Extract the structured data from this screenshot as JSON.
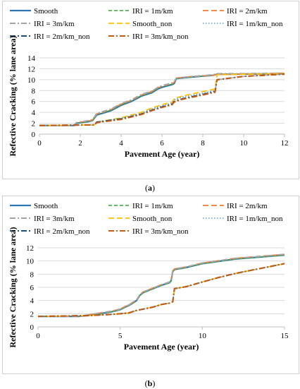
{
  "captions": {
    "a_open": "(",
    "a_letter": "a",
    "a_close": ")",
    "b_open": "(",
    "b_letter": "b",
    "b_close": ")"
  },
  "series_styles": [
    {
      "name": "Smooth",
      "color": "#2e75b6",
      "dash": "solid",
      "width": 2.2
    },
    {
      "name": "IRI = 1m/km",
      "color": "#3aa335",
      "dash": "dash",
      "width": 1.6
    },
    {
      "name": "IRI = 2m/km",
      "color": "#ed7d31",
      "dash": "longdash",
      "width": 1.8
    },
    {
      "name": "IRI = 3m/km",
      "color": "#a5a5a5",
      "dash": "dashdot",
      "width": 2.0
    },
    {
      "name": "Smooth_non",
      "color": "#ffc000",
      "dash": "longdash",
      "width": 1.8
    },
    {
      "name": "IRI = 1m/km_non",
      "color": "#5b9bd5",
      "dash": "dot",
      "width": 1.6
    },
    {
      "name": "IRI = 2m/km_non",
      "color": "#1f4e79",
      "dash": "dashdot",
      "width": 2.0
    },
    {
      "name": "IRI = 3m/km_non",
      "color": "#c55a11",
      "dash": "dashdot",
      "width": 2.0
    }
  ],
  "chart_data": [
    {
      "type": "line",
      "xlabel": "Pavement Age (year)",
      "ylabel": "Refective Cracking (% lane area)",
      "xlim": [
        0,
        12
      ],
      "ylim": [
        0,
        14
      ],
      "xticks": [
        "0",
        "2",
        "4",
        "6",
        "8",
        "10",
        "12"
      ],
      "yticks": [
        "0",
        "2",
        "4",
        "6",
        "8",
        "10",
        "12",
        "14"
      ],
      "grid": true,
      "legend_position": "top",
      "series": [
        {
          "name": "Smooth",
          "x": [
            0,
            1.7,
            1.8,
            2.4,
            2.6,
            2.7,
            2.8,
            3.5,
            4.0,
            4.5,
            5.0,
            5.5,
            5.8,
            6.0,
            6.5,
            6.6,
            6.7,
            7.5,
            8.5,
            8.7,
            9.5,
            12
          ],
          "y": [
            1.6,
            1.6,
            2.0,
            2.3,
            2.5,
            3.0,
            3.5,
            4.3,
            5.3,
            6.0,
            7.0,
            7.6,
            8.3,
            8.6,
            9.1,
            9.3,
            10.2,
            10.5,
            10.8,
            11.0,
            11.0,
            11.1
          ]
        },
        {
          "name": "IRI = 1m/km",
          "x": [
            0,
            1.7,
            1.8,
            2.4,
            2.6,
            2.7,
            2.8,
            3.5,
            4.0,
            4.5,
            5.0,
            5.5,
            5.8,
            6.0,
            6.5,
            6.6,
            6.7,
            7.5,
            8.5,
            8.7,
            9.5,
            12
          ],
          "y": [
            1.6,
            1.6,
            2.0,
            2.3,
            2.5,
            3.0,
            3.6,
            4.4,
            5.4,
            6.1,
            7.1,
            7.7,
            8.4,
            8.7,
            9.2,
            9.4,
            10.2,
            10.5,
            10.8,
            11.0,
            11.0,
            11.1
          ]
        },
        {
          "name": "IRI = 2m/km",
          "x": [
            0,
            1.7,
            1.8,
            2.4,
            2.6,
            2.7,
            2.8,
            3.5,
            4.0,
            4.5,
            5.0,
            5.5,
            5.8,
            6.0,
            6.5,
            6.6,
            6.7,
            7.5,
            8.5,
            8.7,
            9.5,
            12
          ],
          "y": [
            1.6,
            1.6,
            2.1,
            2.4,
            2.6,
            3.1,
            3.7,
            4.5,
            5.5,
            6.2,
            7.2,
            7.8,
            8.5,
            8.8,
            9.3,
            9.5,
            10.3,
            10.6,
            10.8,
            11.0,
            11.0,
            11.2
          ]
        },
        {
          "name": "IRI = 3m/km",
          "x": [
            0,
            1.7,
            1.8,
            2.4,
            2.6,
            2.7,
            2.8,
            3.5,
            4.0,
            4.5,
            5.0,
            5.5,
            5.8,
            6.0,
            6.5,
            6.6,
            6.7,
            7.5,
            8.5,
            8.7,
            9.5,
            12
          ],
          "y": [
            1.6,
            1.6,
            2.1,
            2.5,
            2.7,
            3.2,
            3.8,
            4.6,
            5.6,
            6.3,
            7.3,
            7.9,
            8.6,
            8.9,
            9.4,
            9.6,
            10.3,
            10.6,
            10.9,
            11.1,
            11.1,
            11.2
          ]
        },
        {
          "name": "Smooth_non",
          "x": [
            0,
            2.7,
            2.8,
            4.0,
            5.0,
            5.5,
            6.0,
            6.5,
            6.6,
            7.0,
            8.0,
            8.6,
            8.7,
            10.0,
            12
          ],
          "y": [
            1.6,
            1.7,
            2.2,
            3.0,
            4.0,
            4.8,
            5.4,
            5.9,
            6.5,
            7.0,
            7.8,
            8.3,
            10.9,
            11.0,
            11.1
          ]
        },
        {
          "name": "IRI = 1m/km_non",
          "x": [
            0,
            2.7,
            2.8,
            4.0,
            5.0,
            5.5,
            6.0,
            6.5,
            6.6,
            7.0,
            8.0,
            8.6,
            8.7,
            10.0,
            12
          ],
          "y": [
            1.6,
            1.7,
            2.2,
            2.9,
            3.8,
            4.6,
            5.2,
            5.7,
            6.3,
            6.8,
            7.5,
            8.0,
            10.0,
            10.6,
            11.0
          ]
        },
        {
          "name": "IRI = 2m/km_non",
          "x": [
            0,
            2.7,
            2.8,
            4.0,
            5.0,
            5.5,
            6.0,
            6.5,
            6.6,
            7.0,
            8.0,
            8.6,
            8.7,
            10.0,
            12
          ],
          "y": [
            1.6,
            1.7,
            2.2,
            2.8,
            3.7,
            4.4,
            5.0,
            5.5,
            6.0,
            6.5,
            7.3,
            7.8,
            10.0,
            10.6,
            11.0
          ]
        },
        {
          "name": "IRI = 3m/km_non",
          "x": [
            0,
            2.7,
            2.8,
            4.0,
            5.0,
            5.5,
            6.0,
            6.5,
            6.6,
            7.0,
            8.0,
            8.6,
            8.7,
            10.0,
            12
          ],
          "y": [
            1.6,
            1.7,
            2.1,
            2.7,
            3.6,
            4.3,
            4.9,
            5.4,
            5.9,
            6.4,
            7.2,
            7.7,
            10.0,
            10.6,
            11.0
          ]
        }
      ]
    },
    {
      "type": "line",
      "xlabel": "Pavement Age (year)",
      "ylabel": "Refective Cracking (% lane area)",
      "xlim": [
        0,
        15
      ],
      "ylim": [
        0,
        12
      ],
      "xticks": [
        "0",
        "5",
        "10",
        "15"
      ],
      "yticks": [
        "0",
        "2",
        "4",
        "6",
        "8",
        "10",
        "12"
      ],
      "grid": true,
      "legend_position": "top",
      "series": [
        {
          "name": "Smooth",
          "x": [
            0,
            2.5,
            3.5,
            4.5,
            5.0,
            5.3,
            5.5,
            5.7,
            6.0,
            6.2,
            6.4,
            6.6,
            7.0,
            7.5,
            8.0,
            8.1,
            8.2,
            8.3,
            9.0,
            10.0,
            12.0,
            15.0
          ],
          "y": [
            1.6,
            1.6,
            1.9,
            2.3,
            2.6,
            3.0,
            3.2,
            3.5,
            4.0,
            4.8,
            5.2,
            5.4,
            5.8,
            6.3,
            6.7,
            7.0,
            8.4,
            8.7,
            9.0,
            9.6,
            10.3,
            10.9
          ]
        },
        {
          "name": "IRI = 1m/km",
          "x": [
            0,
            2.5,
            3.5,
            4.5,
            5.0,
            5.3,
            5.5,
            5.7,
            6.0,
            6.2,
            6.4,
            6.6,
            7.0,
            7.5,
            8.0,
            8.1,
            8.2,
            8.3,
            9.0,
            10.0,
            12.0,
            15.0
          ],
          "y": [
            1.6,
            1.6,
            1.9,
            2.3,
            2.6,
            3.0,
            3.2,
            3.5,
            4.0,
            4.8,
            5.2,
            5.4,
            5.8,
            6.3,
            6.7,
            7.0,
            8.4,
            8.7,
            9.0,
            9.6,
            10.3,
            10.9
          ]
        },
        {
          "name": "IRI = 2m/km",
          "x": [
            0,
            2.5,
            3.5,
            4.5,
            5.0,
            5.3,
            5.5,
            5.7,
            6.0,
            6.2,
            6.4,
            6.6,
            7.0,
            7.5,
            8.0,
            8.1,
            8.2,
            8.3,
            9.0,
            10.0,
            12.0,
            15.0
          ],
          "y": [
            1.6,
            1.6,
            2.0,
            2.4,
            2.7,
            3.1,
            3.3,
            3.6,
            4.1,
            4.9,
            5.3,
            5.5,
            5.9,
            6.4,
            6.8,
            7.1,
            8.5,
            8.8,
            9.1,
            9.7,
            10.4,
            11.0
          ]
        },
        {
          "name": "IRI = 3m/km",
          "x": [
            0,
            2.5,
            3.5,
            4.5,
            5.0,
            5.3,
            5.5,
            5.7,
            6.0,
            6.2,
            6.4,
            6.6,
            7.0,
            7.5,
            8.0,
            8.1,
            8.2,
            8.3,
            9.0,
            10.0,
            12.0,
            15.0
          ],
          "y": [
            1.6,
            1.6,
            2.0,
            2.4,
            2.7,
            3.1,
            3.3,
            3.6,
            4.1,
            4.9,
            5.3,
            5.5,
            5.9,
            6.4,
            6.8,
            7.1,
            8.5,
            8.8,
            9.1,
            9.7,
            10.4,
            11.0
          ]
        },
        {
          "name": "Smooth_non",
          "x": [
            0,
            3.0,
            4.5,
            5.5,
            6.0,
            7.0,
            7.5,
            8.0,
            8.2,
            8.3,
            9.0,
            10.0,
            11.0,
            12.0,
            13.0,
            14.0,
            15.0
          ],
          "y": [
            1.6,
            1.7,
            1.9,
            2.1,
            2.5,
            3.0,
            3.4,
            3.6,
            3.8,
            5.8,
            6.1,
            6.8,
            7.5,
            8.1,
            8.6,
            9.1,
            9.6
          ]
        },
        {
          "name": "IRI = 1m/km_non",
          "x": [
            0,
            3.0,
            4.5,
            5.5,
            6.0,
            7.0,
            7.5,
            8.0,
            8.2,
            8.3,
            9.0,
            10.0,
            11.0,
            12.0,
            13.0,
            14.0,
            15.0
          ],
          "y": [
            1.6,
            1.7,
            1.9,
            2.1,
            2.5,
            3.0,
            3.4,
            3.6,
            3.8,
            5.8,
            6.1,
            6.8,
            7.5,
            8.1,
            8.6,
            9.1,
            9.6
          ]
        },
        {
          "name": "IRI = 2m/km_non",
          "x": [
            0,
            3.0,
            4.5,
            5.5,
            6.0,
            7.0,
            7.5,
            8.0,
            8.2,
            8.3,
            9.0,
            10.0,
            11.0,
            12.0,
            13.0,
            14.0,
            15.0
          ],
          "y": [
            1.6,
            1.7,
            1.9,
            2.1,
            2.5,
            3.0,
            3.4,
            3.6,
            3.8,
            5.8,
            6.1,
            6.8,
            7.5,
            8.1,
            8.6,
            9.1,
            9.6
          ]
        },
        {
          "name": "IRI = 3m/km_non",
          "x": [
            0,
            3.0,
            4.5,
            5.5,
            6.0,
            7.0,
            7.5,
            8.0,
            8.2,
            8.3,
            9.0,
            10.0,
            11.0,
            12.0,
            13.0,
            14.0,
            15.0
          ],
          "y": [
            1.6,
            1.7,
            1.9,
            2.1,
            2.5,
            3.0,
            3.4,
            3.6,
            3.8,
            5.8,
            6.1,
            6.8,
            7.5,
            8.1,
            8.6,
            9.1,
            9.6
          ]
        }
      ]
    }
  ]
}
